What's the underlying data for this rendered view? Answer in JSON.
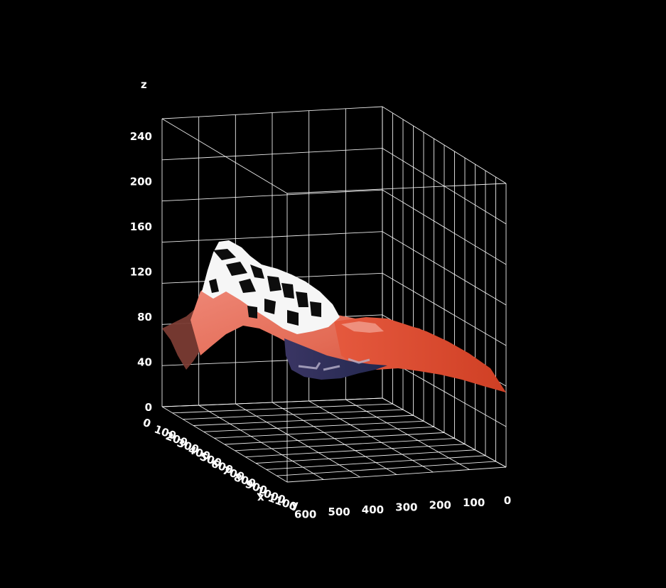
{
  "chart_data": {
    "type": "surface",
    "title": "",
    "xlabel": "x",
    "ylabel": "y",
    "zlabel": "z",
    "x_ticks": [
      "0",
      "100",
      "200",
      "300",
      "400",
      "500",
      "600",
      "700",
      "800",
      "900",
      "1000",
      "1100"
    ],
    "y_ticks": [
      "600",
      "500",
      "400",
      "300",
      "200",
      "100",
      "0"
    ],
    "z_ticks": [
      "0",
      "40",
      "80",
      "120",
      "160",
      "200",
      "240"
    ],
    "xlim": [
      0,
      1100
    ],
    "ylim": [
      0,
      650
    ],
    "zlim": [
      0,
      255
    ],
    "grid": true,
    "background": "#000000",
    "grid_color": "#ffffff",
    "surface": {
      "texture": "image",
      "colors": {
        "salmon": "#e07a6a",
        "red_orange": "#d8452a",
        "navy": "#2a2f5a",
        "white": "#f4f4f4",
        "black": "#111111"
      },
      "description_profile_z_by_y": [
        {
          "y": 0,
          "z": 5
        },
        {
          "y": 100,
          "z": 25
        },
        {
          "y": 200,
          "z": 50
        },
        {
          "y": 300,
          "z": 75
        },
        {
          "y": 400,
          "z": 100
        },
        {
          "y": 500,
          "z": 115
        },
        {
          "y": 600,
          "z": 130
        },
        {
          "y": 650,
          "z": 70
        }
      ]
    }
  }
}
